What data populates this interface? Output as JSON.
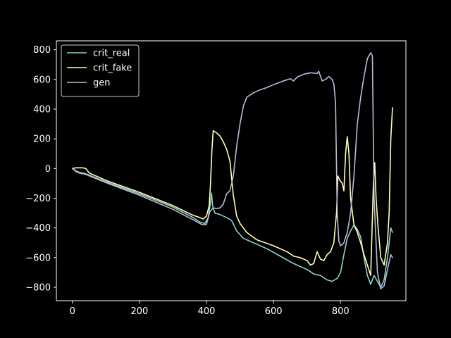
{
  "chart_data": {
    "type": "line",
    "title": "",
    "xlabel": "",
    "ylabel": "",
    "xlim": [
      -48,
      995
    ],
    "ylim": [
      -890,
      860
    ],
    "xticks": [
      0,
      200,
      400,
      600,
      800
    ],
    "yticks": [
      -800,
      -600,
      -400,
      -200,
      0,
      200,
      400,
      600,
      800
    ],
    "grid": false,
    "legend": "top-left",
    "background": "#000000",
    "axis_color": "#ffffff",
    "series": [
      {
        "name": "crit_real",
        "color": "#8dd3c7",
        "points": [
          [
            0,
            0
          ],
          [
            10,
            -15
          ],
          [
            20,
            -25
          ],
          [
            40,
            -35
          ],
          [
            100,
            -90
          ],
          [
            200,
            -170
          ],
          [
            300,
            -260
          ],
          [
            360,
            -330
          ],
          [
            380,
            -360
          ],
          [
            395,
            -370
          ],
          [
            405,
            -330
          ],
          [
            412,
            -230
          ],
          [
            415,
            -165
          ],
          [
            418,
            -250
          ],
          [
            425,
            -300
          ],
          [
            440,
            -310
          ],
          [
            460,
            -330
          ],
          [
            475,
            -350
          ],
          [
            490,
            -420
          ],
          [
            510,
            -470
          ],
          [
            540,
            -500
          ],
          [
            580,
            -540
          ],
          [
            620,
            -590
          ],
          [
            660,
            -640
          ],
          [
            700,
            -680
          ],
          [
            720,
            -710
          ],
          [
            740,
            -720
          ],
          [
            760,
            -750
          ],
          [
            775,
            -760
          ],
          [
            790,
            -740
          ],
          [
            800,
            -700
          ],
          [
            810,
            -580
          ],
          [
            820,
            -470
          ],
          [
            830,
            -420
          ],
          [
            840,
            -380
          ],
          [
            850,
            -410
          ],
          [
            860,
            -460
          ],
          [
            870,
            -600
          ],
          [
            880,
            -720
          ],
          [
            890,
            -780
          ],
          [
            900,
            -720
          ],
          [
            910,
            -760
          ],
          [
            920,
            -800
          ],
          [
            930,
            -750
          ],
          [
            940,
            -600
          ],
          [
            950,
            -400
          ],
          [
            955,
            -430
          ]
        ]
      },
      {
        "name": "crit_fake",
        "color": "#ffffb3",
        "points": [
          [
            0,
            0
          ],
          [
            10,
            5
          ],
          [
            20,
            5
          ],
          [
            30,
            5
          ],
          [
            40,
            0
          ],
          [
            50,
            -30
          ],
          [
            100,
            -80
          ],
          [
            200,
            -160
          ],
          [
            300,
            -250
          ],
          [
            360,
            -315
          ],
          [
            380,
            -330
          ],
          [
            390,
            -340
          ],
          [
            400,
            -320
          ],
          [
            408,
            -250
          ],
          [
            412,
            -100
          ],
          [
            416,
            120
          ],
          [
            420,
            255
          ],
          [
            430,
            240
          ],
          [
            440,
            220
          ],
          [
            450,
            180
          ],
          [
            460,
            130
          ],
          [
            470,
            50
          ],
          [
            480,
            -180
          ],
          [
            490,
            -320
          ],
          [
            500,
            -370
          ],
          [
            520,
            -430
          ],
          [
            550,
            -480
          ],
          [
            600,
            -520
          ],
          [
            640,
            -560
          ],
          [
            660,
            -590
          ],
          [
            680,
            -600
          ],
          [
            700,
            -620
          ],
          [
            710,
            -650
          ],
          [
            720,
            -640
          ],
          [
            730,
            -560
          ],
          [
            740,
            -610
          ],
          [
            750,
            -620
          ],
          [
            760,
            -580
          ],
          [
            770,
            -560
          ],
          [
            780,
            -500
          ],
          [
            788,
            -300
          ],
          [
            792,
            -50
          ],
          [
            798,
            -80
          ],
          [
            805,
            -100
          ],
          [
            810,
            -150
          ],
          [
            815,
            100
          ],
          [
            820,
            215
          ],
          [
            825,
            100
          ],
          [
            830,
            -200
          ],
          [
            840,
            -380
          ],
          [
            850,
            -430
          ],
          [
            860,
            -500
          ],
          [
            870,
            -580
          ],
          [
            880,
            -650
          ],
          [
            890,
            -720
          ],
          [
            898,
            -100
          ],
          [
            902,
            40
          ],
          [
            906,
            -200
          ],
          [
            912,
            -400
          ],
          [
            920,
            -600
          ],
          [
            930,
            -650
          ],
          [
            940,
            -500
          ],
          [
            945,
            -300
          ],
          [
            950,
            200
          ],
          [
            955,
            410
          ]
        ]
      },
      {
        "name": "gen",
        "color": "#bebada",
        "points": [
          [
            0,
            0
          ],
          [
            10,
            -20
          ],
          [
            20,
            -30
          ],
          [
            40,
            -40
          ],
          [
            100,
            -95
          ],
          [
            200,
            -180
          ],
          [
            300,
            -275
          ],
          [
            360,
            -345
          ],
          [
            380,
            -370
          ],
          [
            390,
            -380
          ],
          [
            400,
            -375
          ],
          [
            410,
            -290
          ],
          [
            420,
            -265
          ],
          [
            430,
            -270
          ],
          [
            440,
            -265
          ],
          [
            450,
            -240
          ],
          [
            460,
            -170
          ],
          [
            470,
            -150
          ],
          [
            480,
            -50
          ],
          [
            490,
            150
          ],
          [
            500,
            300
          ],
          [
            510,
            420
          ],
          [
            520,
            480
          ],
          [
            540,
            510
          ],
          [
            560,
            530
          ],
          [
            580,
            545
          ],
          [
            600,
            565
          ],
          [
            630,
            590
          ],
          [
            650,
            605
          ],
          [
            660,
            590
          ],
          [
            670,
            615
          ],
          [
            690,
            635
          ],
          [
            710,
            645
          ],
          [
            730,
            640
          ],
          [
            735,
            655
          ],
          [
            745,
            590
          ],
          [
            755,
            600
          ],
          [
            765,
            620
          ],
          [
            775,
            600
          ],
          [
            780,
            570
          ],
          [
            785,
            450
          ],
          [
            790,
            -300
          ],
          [
            795,
            -490
          ],
          [
            800,
            -520
          ],
          [
            810,
            -500
          ],
          [
            820,
            -430
          ],
          [
            830,
            -300
          ],
          [
            840,
            -50
          ],
          [
            850,
            300
          ],
          [
            860,
            480
          ],
          [
            870,
            620
          ],
          [
            880,
            740
          ],
          [
            890,
            780
          ],
          [
            895,
            760
          ],
          [
            900,
            -200
          ],
          [
            910,
            -700
          ],
          [
            920,
            -810
          ],
          [
            930,
            -790
          ],
          [
            940,
            -680
          ],
          [
            950,
            -580
          ],
          [
            955,
            -600
          ]
        ]
      }
    ]
  }
}
